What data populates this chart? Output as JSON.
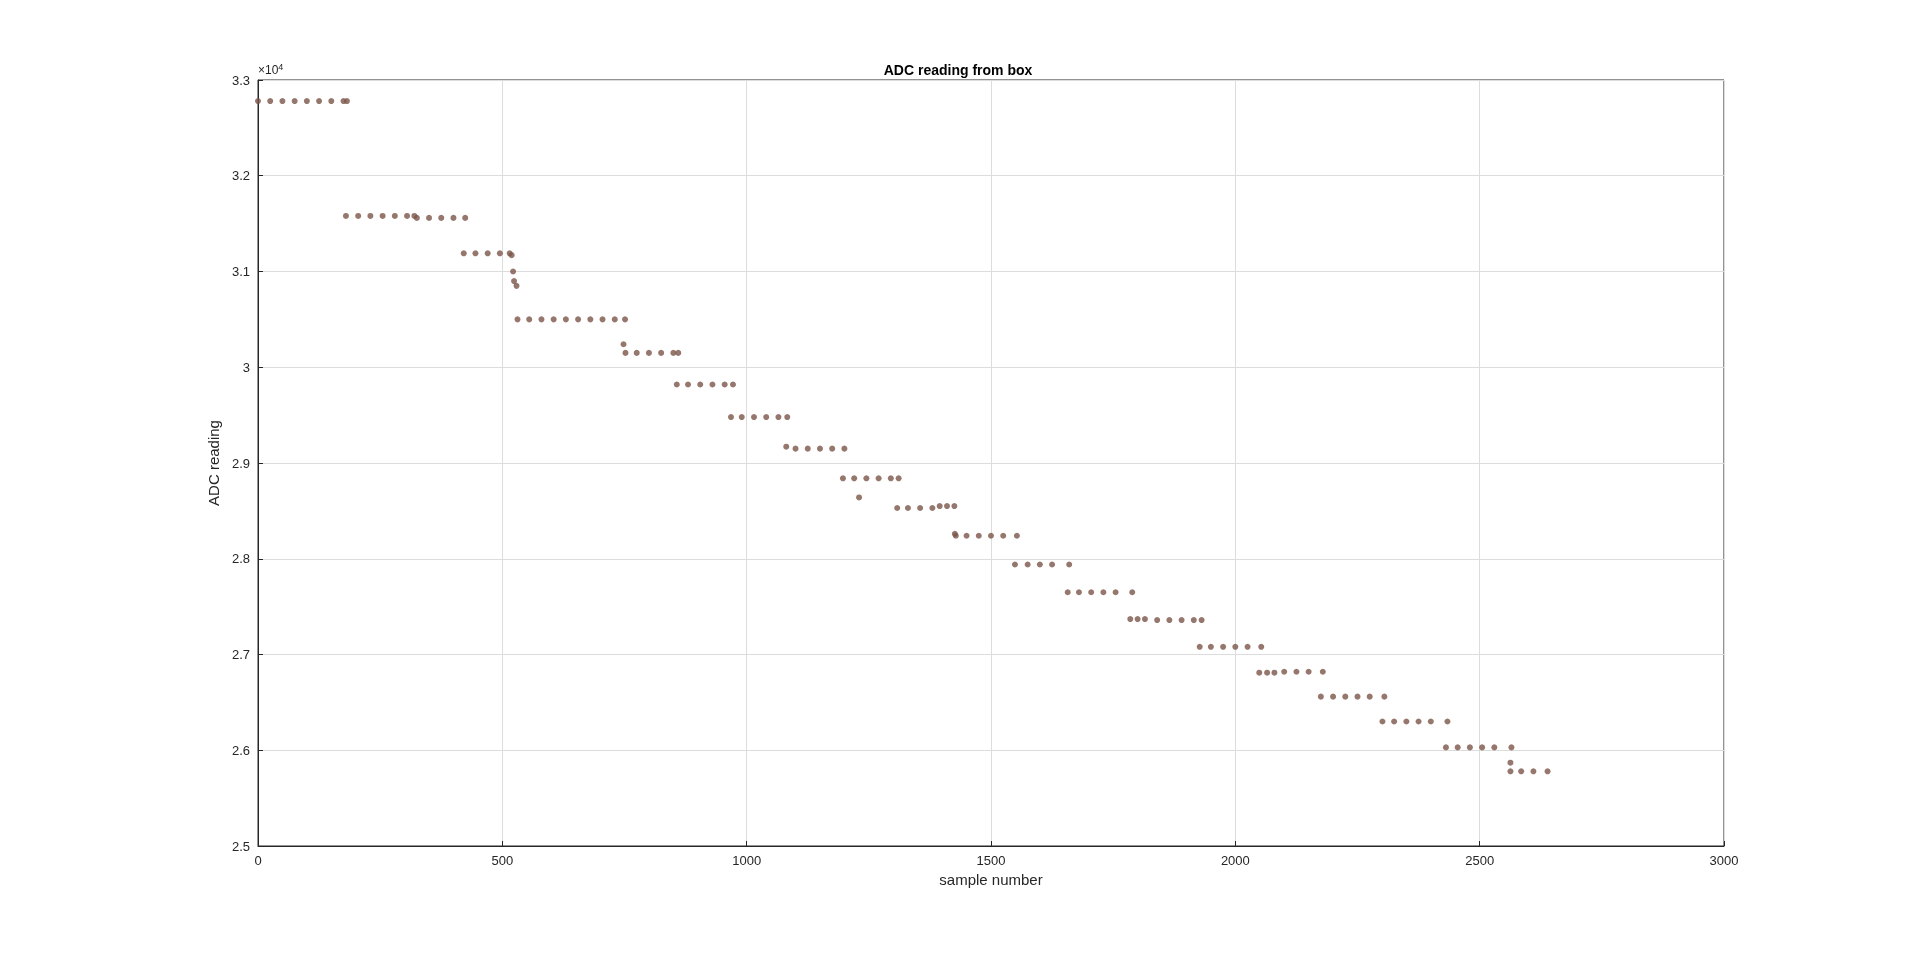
{
  "chart_data": {
    "type": "scatter",
    "title": "ADC reading from box",
    "xlabel": "sample number",
    "ylabel": "ADC reading",
    "annotations": [
      "×10$^{4}$"
    ],
    "x": [
      0,
      25,
      50,
      75,
      100,
      125,
      150,
      175,
      182,
      180,
      205,
      230,
      255,
      280,
      305,
      320,
      325,
      350,
      375,
      400,
      424,
      421,
      445,
      470,
      495,
      515,
      519,
      522,
      524,
      529,
      531,
      555,
      580,
      605,
      630,
      655,
      680,
      705,
      730,
      751,
      748,
      752,
      775,
      800,
      825,
      850,
      860,
      857,
      880,
      905,
      930,
      955,
      972,
      968,
      990,
      1015,
      1040,
      1065,
      1083,
      1081,
      1100,
      1125,
      1150,
      1175,
      1200,
      1197,
      1220,
      1245,
      1270,
      1295,
      1311,
      1230,
      1308,
      1330,
      1355,
      1380,
      1395,
      1410,
      1425,
      1426,
      1428,
      1450,
      1475,
      1500,
      1525,
      1553,
      1549,
      1575,
      1600,
      1625,
      1660,
      1657,
      1680,
      1705,
      1730,
      1755,
      1789,
      1785,
      1800,
      1815,
      1840,
      1865,
      1890,
      1915,
      1931,
      1927,
      1950,
      1975,
      2000,
      2025,
      2053,
      2049,
      2065,
      2080,
      2100,
      2125,
      2150,
      2179,
      2175,
      2200,
      2225,
      2250,
      2275,
      2305,
      2301,
      2325,
      2350,
      2375,
      2400,
      2434,
      2431,
      2455,
      2480,
      2505,
      2530,
      2565,
      2563,
      2563,
      2585,
      2610,
      2639
    ],
    "values": [
      3.278,
      3.278,
      3.278,
      3.278,
      3.278,
      3.278,
      3.278,
      3.278,
      3.278,
      3.158,
      3.158,
      3.158,
      3.158,
      3.158,
      3.158,
      3.158,
      3.156,
      3.156,
      3.156,
      3.156,
      3.156,
      3.119,
      3.119,
      3.119,
      3.119,
      3.119,
      3.117,
      3.1,
      3.09,
      3.085,
      3.05,
      3.05,
      3.05,
      3.05,
      3.05,
      3.05,
      3.05,
      3.05,
      3.05,
      3.05,
      3.024,
      3.015,
      3.015,
      3.015,
      3.015,
      3.015,
      3.015,
      2.982,
      2.982,
      2.982,
      2.982,
      2.982,
      2.982,
      2.948,
      2.948,
      2.948,
      2.948,
      2.948,
      2.948,
      2.917,
      2.915,
      2.915,
      2.915,
      2.915,
      2.915,
      2.884,
      2.884,
      2.884,
      2.884,
      2.884,
      2.884,
      2.864,
      2.853,
      2.853,
      2.853,
      2.853,
      2.855,
      2.855,
      2.855,
      2.826,
      2.824,
      2.824,
      2.824,
      2.824,
      2.824,
      2.824,
      2.794,
      2.794,
      2.794,
      2.794,
      2.794,
      2.765,
      2.765,
      2.765,
      2.765,
      2.765,
      2.765,
      2.737,
      2.737,
      2.737,
      2.736,
      2.736,
      2.736,
      2.736,
      2.736,
      2.708,
      2.708,
      2.708,
      2.708,
      2.708,
      2.708,
      2.681,
      2.681,
      2.681,
      2.682,
      2.682,
      2.682,
      2.682,
      2.656,
      2.656,
      2.656,
      2.656,
      2.656,
      2.656,
      2.63,
      2.63,
      2.63,
      2.63,
      2.63,
      2.63,
      2.603,
      2.603,
      2.603,
      2.603,
      2.603,
      2.603,
      2.587,
      2.578,
      2.578,
      2.578,
      2.578
    ],
    "color": "#7a5548",
    "marker": "circle",
    "xlim": [
      0,
      3000
    ],
    "xticks": [
      0,
      500,
      1000,
      1500,
      2000,
      2500,
      3000
    ],
    "ylim": [
      2.5,
      3.3
    ],
    "yticks": [
      2.5,
      2.6,
      2.7,
      2.8,
      2.9,
      3,
      3.1,
      3.2,
      3.3
    ],
    "grid": true
  }
}
